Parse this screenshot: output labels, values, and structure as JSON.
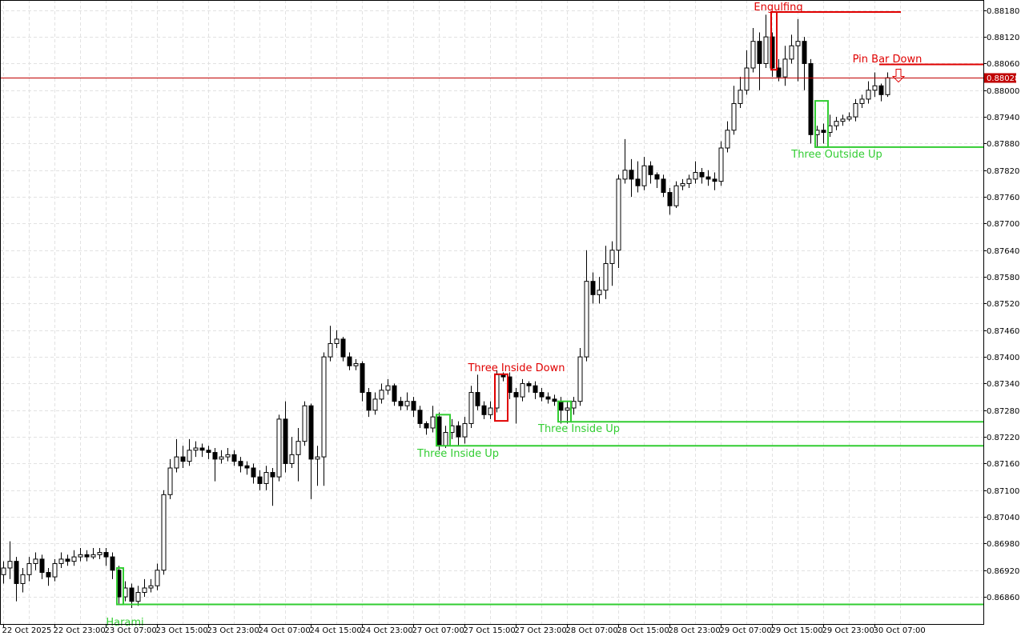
{
  "chart_data": {
    "type": "candlestick",
    "categories": [
      "22 Oct 2025",
      null,
      null,
      null,
      null,
      null,
      null,
      null,
      "22 Oct 23:00",
      null,
      null,
      null,
      null,
      null,
      null,
      null,
      "23 Oct 07:00",
      null,
      null,
      null,
      null,
      null,
      null,
      null,
      "23 Oct 15:00",
      null,
      null,
      null,
      null,
      null,
      null,
      null,
      "23 Oct 23:00",
      null,
      null,
      null,
      null,
      null,
      null,
      null,
      "24 Oct 07:00",
      null,
      null,
      null,
      null,
      null,
      null,
      null,
      "24 Oct 15:00",
      null,
      null,
      null,
      null,
      null,
      null,
      null,
      "24 Oct 23:00",
      null,
      null,
      null,
      null,
      null,
      null,
      null,
      "27 Oct 07:00",
      null,
      null,
      null,
      null,
      null,
      null,
      null,
      "27 Oct 15:00",
      null,
      null,
      null,
      null,
      null,
      null,
      null,
      "27 Oct 23:00",
      null,
      null,
      null,
      null,
      null,
      null,
      null,
      "28 Oct 07:00",
      null,
      null,
      null,
      null,
      null,
      null,
      null,
      "28 Oct 15:00",
      null,
      null,
      null,
      null,
      null,
      null,
      null,
      "28 Oct 23:00",
      null,
      null,
      null,
      null,
      null,
      null,
      null,
      "29 Oct 07:00",
      null,
      null,
      null,
      null,
      null,
      null,
      null,
      "29 Oct 15:00",
      null,
      null,
      null,
      null,
      null,
      null,
      null,
      "29 Oct 23:00",
      null,
      null,
      null,
      null,
      null,
      null,
      null,
      "30 Oct 07:00",
      null,
      null
    ],
    "open": [
      0.8691,
      0.86925,
      0.8694,
      0.8689,
      0.8691,
      0.86935,
      0.86945,
      0.86915,
      0.86905,
      0.86935,
      0.86945,
      0.8694,
      0.8695,
      0.86955,
      0.8695,
      0.86955,
      0.8696,
      0.8695,
      0.8692,
      0.8686,
      0.8688,
      0.8685,
      0.8687,
      0.8688,
      0.86885,
      0.8692,
      0.8709,
      0.8715,
      0.87175,
      0.87165,
      0.8719,
      0.87195,
      0.8719,
      0.87185,
      0.8717,
      0.87175,
      0.8718,
      0.87165,
      0.87155,
      0.8715,
      0.8713,
      0.87115,
      0.8714,
      0.8713,
      0.8726,
      0.8716,
      0.8718,
      0.8721,
      0.8729,
      0.8717,
      0.87175,
      0.874,
      0.8743,
      0.8744,
      0.874,
      0.8738,
      0.87385,
      0.8732,
      0.8728,
      0.87305,
      0.87325,
      0.87335,
      0.873,
      0.8729,
      0.873,
      0.8728,
      0.8725,
      0.8724,
      0.87265,
      0.872,
      0.8723,
      0.87245,
      0.8722,
      0.8725,
      0.8732,
      0.8729,
      0.8727,
      0.87285,
      0.8736,
      0.87355,
      0.8732,
      0.8731,
      0.8734,
      0.87335,
      0.8732,
      0.8731,
      0.87305,
      0.873,
      0.8728,
      0.87285,
      0.873,
      0.874,
      0.8757,
      0.8754,
      0.8755,
      0.8761,
      0.8764,
      0.878,
      0.8782,
      0.878,
      0.87785,
      0.8783,
      0.8781,
      0.878,
      0.8777,
      0.8774,
      0.87785,
      0.8779,
      0.878,
      0.87815,
      0.87805,
      0.878,
      0.87795,
      0.8787,
      0.8791,
      0.8797,
      0.88,
      0.8805,
      0.8811,
      0.8806,
      0.8812,
      0.8805,
      0.8803,
      0.8807,
      0.881,
      0.8811,
      0.8806,
      0.879,
      0.8791,
      0.87905,
      0.8792,
      0.8793,
      0.87935,
      0.8794,
      0.8797,
      0.8798,
      0.88,
      0.8801,
      0.8799
    ],
    "high": [
      0.8694,
      0.86985,
      0.8695,
      0.86925,
      0.8695,
      0.8696,
      0.86955,
      0.86925,
      0.86945,
      0.8696,
      0.86955,
      0.86965,
      0.8697,
      0.86965,
      0.8697,
      0.8697,
      0.8697,
      0.8696,
      0.8693,
      0.86895,
      0.8689,
      0.86885,
      0.869,
      0.869,
      0.86935,
      0.871,
      0.8717,
      0.87215,
      0.872,
      0.87215,
      0.8721,
      0.87205,
      0.872,
      0.87195,
      0.8719,
      0.87195,
      0.8719,
      0.87175,
      0.87165,
      0.8716,
      0.87145,
      0.87155,
      0.8715,
      0.8727,
      0.873,
      0.8722,
      0.8724,
      0.873,
      0.87295,
      0.872,
      0.8741,
      0.8747,
      0.8746,
      0.87445,
      0.8741,
      0.87395,
      0.8739,
      0.8733,
      0.8732,
      0.8734,
      0.8735,
      0.8734,
      0.8731,
      0.8732,
      0.8731,
      0.8729,
      0.87255,
      0.8729,
      0.87275,
      0.87245,
      0.8726,
      0.87255,
      0.87265,
      0.87335,
      0.8736,
      0.873,
      0.873,
      0.8737,
      0.87365,
      0.87365,
      0.8733,
      0.8735,
      0.87345,
      0.87345,
      0.8733,
      0.8732,
      0.87315,
      0.8731,
      0.873,
      0.8731,
      0.8742,
      0.8764,
      0.8759,
      0.8758,
      0.8765,
      0.8766,
      0.8781,
      0.8789,
      0.87845,
      0.8784,
      0.8785,
      0.8784,
      0.87815,
      0.8781,
      0.8778,
      0.87795,
      0.878,
      0.8781,
      0.8784,
      0.87825,
      0.8782,
      0.87815,
      0.87885,
      0.8793,
      0.8801,
      0.8803,
      0.8809,
      0.8814,
      0.8813,
      0.8817,
      0.8813,
      0.8807,
      0.881,
      0.88125,
      0.8816,
      0.8812,
      0.8807,
      0.8792,
      0.87925,
      0.87945,
      0.8794,
      0.87945,
      0.8795,
      0.8798,
      0.8799,
      0.8802,
      0.8804,
      0.88015,
      0.8804
    ],
    "low": [
      0.8689,
      0.869,
      0.8685,
      0.8687,
      0.86895,
      0.8692,
      0.869,
      0.86885,
      0.86895,
      0.86925,
      0.8693,
      0.8693,
      0.8694,
      0.8694,
      0.86945,
      0.86945,
      0.8693,
      0.869,
      0.86845,
      0.8685,
      0.86835,
      0.8684,
      0.8686,
      0.8687,
      0.86875,
      0.8691,
      0.8708,
      0.8714,
      0.8715,
      0.87155,
      0.87175,
      0.87175,
      0.8717,
      0.8712,
      0.8716,
      0.87165,
      0.87155,
      0.8714,
      0.87135,
      0.87115,
      0.871,
      0.871,
      0.87065,
      0.8712,
      0.8714,
      0.8715,
      0.8712,
      0.872,
      0.8708,
      0.8711,
      0.8711,
      0.8739,
      0.8742,
      0.8739,
      0.8737,
      0.8737,
      0.873,
      0.87265,
      0.8727,
      0.87295,
      0.87315,
      0.8729,
      0.8728,
      0.8728,
      0.87265,
      0.8724,
      0.87225,
      0.8723,
      0.8719,
      0.87195,
      0.87215,
      0.872,
      0.87205,
      0.8724,
      0.8728,
      0.8726,
      0.8726,
      0.87275,
      0.87345,
      0.87305,
      0.8725,
      0.873,
      0.8732,
      0.87305,
      0.873,
      0.87295,
      0.8729,
      0.8725,
      0.8725,
      0.8727,
      0.8729,
      0.8739,
      0.8752,
      0.8752,
      0.8753,
      0.8756,
      0.876,
      0.8779,
      0.8776,
      0.8777,
      0.87775,
      0.8779,
      0.8778,
      0.8776,
      0.8772,
      0.87735,
      0.87775,
      0.8778,
      0.8779,
      0.8779,
      0.87785,
      0.87775,
      0.87785,
      0.8786,
      0.879,
      0.8796,
      0.8799,
      0.8804,
      0.88,
      0.8805,
      0.8803,
      0.8802,
      0.8801,
      0.8806,
      0.8802,
      0.88,
      0.8788,
      0.8787,
      0.8788,
      0.87895,
      0.8791,
      0.8792,
      0.8793,
      0.8793,
      0.8796,
      0.8797,
      0.87985,
      0.87975,
      0.87985
    ],
    "close": [
      0.86925,
      0.8694,
      0.8689,
      0.8691,
      0.86935,
      0.86945,
      0.86915,
      0.86905,
      0.86935,
      0.86945,
      0.8694,
      0.8695,
      0.86955,
      0.8695,
      0.86955,
      0.8696,
      0.8695,
      0.8692,
      0.8686,
      0.8688,
      0.8685,
      0.8687,
      0.8688,
      0.86885,
      0.8692,
      0.8709,
      0.8715,
      0.87175,
      0.87165,
      0.8719,
      0.87195,
      0.8719,
      0.87185,
      0.8717,
      0.87175,
      0.8718,
      0.87165,
      0.87155,
      0.8715,
      0.8713,
      0.87115,
      0.8714,
      0.8713,
      0.8726,
      0.8716,
      0.8718,
      0.8721,
      0.8729,
      0.8717,
      0.87175,
      0.874,
      0.8743,
      0.8744,
      0.874,
      0.8738,
      0.87385,
      0.8732,
      0.8728,
      0.87305,
      0.87325,
      0.87335,
      0.873,
      0.8729,
      0.873,
      0.8728,
      0.8725,
      0.8724,
      0.87265,
      0.872,
      0.8723,
      0.87245,
      0.8722,
      0.8725,
      0.8732,
      0.8729,
      0.8727,
      0.87285,
      0.8736,
      0.87355,
      0.8732,
      0.8731,
      0.8734,
      0.87335,
      0.8732,
      0.8731,
      0.87305,
      0.873,
      0.8728,
      0.87285,
      0.873,
      0.874,
      0.8757,
      0.8754,
      0.8755,
      0.8761,
      0.8764,
      0.878,
      0.8782,
      0.878,
      0.87785,
      0.8783,
      0.8781,
      0.878,
      0.8777,
      0.8774,
      0.87785,
      0.8779,
      0.878,
      0.87815,
      0.87805,
      0.878,
      0.87795,
      0.8787,
      0.8791,
      0.8797,
      0.88,
      0.8805,
      0.8811,
      0.8806,
      0.8812,
      0.8805,
      0.8803,
      0.8807,
      0.881,
      0.8811,
      0.8806,
      0.879,
      0.8791,
      0.87905,
      0.8792,
      0.8793,
      0.87935,
      0.8794,
      0.8797,
      0.8798,
      0.88,
      0.8801,
      0.8799,
      0.88028
    ],
    "up_color": "#ffffff",
    "down_color": "#000000",
    "ylim": [
      0.86799,
      0.88203
    ],
    "yticks": [
      {
        "value": 0.8686,
        "label": "0.86860"
      },
      {
        "value": 0.8692,
        "label": "0.86920"
      },
      {
        "value": 0.8698,
        "label": "0.86980"
      },
      {
        "value": 0.8704,
        "label": "0.87040"
      },
      {
        "value": 0.871,
        "label": "0.87100"
      },
      {
        "value": 0.8716,
        "label": "0.87160"
      },
      {
        "value": 0.8722,
        "label": "0.87220"
      },
      {
        "value": 0.8728,
        "label": "0.87280"
      },
      {
        "value": 0.8734,
        "label": "0.87340"
      },
      {
        "value": 0.874,
        "label": "0.87400"
      },
      {
        "value": 0.8746,
        "label": "0.87460"
      },
      {
        "value": 0.8752,
        "label": "0.87520"
      },
      {
        "value": 0.8758,
        "label": "0.87580"
      },
      {
        "value": 0.8764,
        "label": "0.87640"
      },
      {
        "value": 0.877,
        "label": "0.87700"
      },
      {
        "value": 0.8776,
        "label": "0.87760"
      },
      {
        "value": 0.8782,
        "label": "0.87820"
      },
      {
        "value": 0.8788,
        "label": "0.87880"
      },
      {
        "value": 0.8794,
        "label": "0.87940"
      },
      {
        "value": 0.88,
        "label": "0.88000"
      },
      {
        "value": 0.8806,
        "label": "0.88060"
      },
      {
        "value": 0.8812,
        "label": "0.88120"
      },
      {
        "value": 0.8818,
        "label": "0.88180"
      }
    ],
    "grid": true,
    "last_price": 0.88028,
    "last_price_color": "#c00000",
    "patterns": [
      {
        "label": "Harami",
        "color": "#32cd32",
        "range": [
          0.86843,
          0.86925
        ],
        "level": 0.86843
      },
      {
        "label": "Three Inside Up",
        "color": "#32cd32",
        "range": [
          0.872,
          0.8727
        ],
        "level": 0.872
      },
      {
        "label": "Three Inside Down",
        "color": "#e00000",
        "range": [
          0.87256,
          0.87361
        ]
      },
      {
        "label": "Three Inside Up",
        "color": "#32cd32",
        "range": [
          0.87254,
          0.873
        ],
        "level": 0.87254
      },
      {
        "label": "Engulfing",
        "color": "#e00000",
        "range": [
          0.88046,
          0.88176
        ],
        "level": 0.88176
      },
      {
        "label": "Three Outside Up",
        "color": "#32cd32",
        "range": [
          0.87872,
          0.87976
        ],
        "level": 0.87872
      },
      {
        "label": "Pin Bar Down",
        "color": "#e00000",
        "level": 0.88058
      }
    ]
  }
}
